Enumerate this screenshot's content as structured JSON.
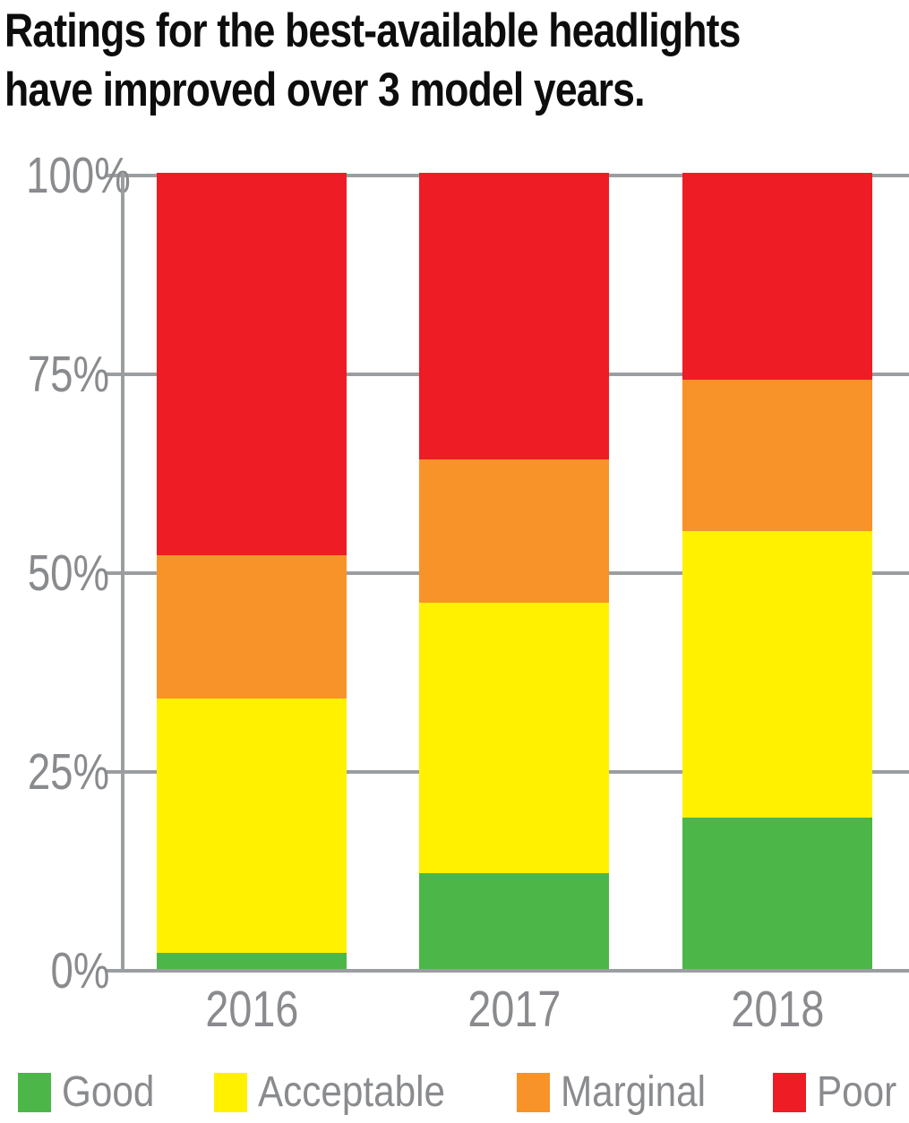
{
  "title": {
    "lines": [
      "Ratings for the best-available headlights",
      "have improved over 3 model years."
    ]
  },
  "chart_data": {
    "type": "bar",
    "stacked": true,
    "unit": "percent",
    "title": "Ratings for the best-available headlights have improved over 3 model years.",
    "categories": [
      "2016",
      "2017",
      "2018"
    ],
    "series": [
      {
        "name": "Good",
        "color": "#4cb748",
        "values": [
          2,
          12,
          19
        ]
      },
      {
        "name": "Acceptable",
        "color": "#fff100",
        "values": [
          32,
          34,
          36
        ]
      },
      {
        "name": "Marginal",
        "color": "#f79329",
        "values": [
          18,
          18,
          19
        ]
      },
      {
        "name": "Poor",
        "color": "#ee1c25",
        "values": [
          48,
          36,
          26
        ]
      }
    ],
    "yticks": [
      "0%",
      "25%",
      "50%",
      "75%",
      "100%"
    ],
    "ytick_values": [
      0,
      25,
      50,
      75,
      100
    ],
    "ylim": [
      0,
      100
    ],
    "xlabel": "",
    "ylabel": "",
    "grid": true,
    "legend_position": "bottom"
  },
  "colors": {
    "title_text": "#0d0d0d",
    "axis_text": "#898b8e",
    "gridline": "#9b9ea0",
    "background": "#ffffff"
  }
}
